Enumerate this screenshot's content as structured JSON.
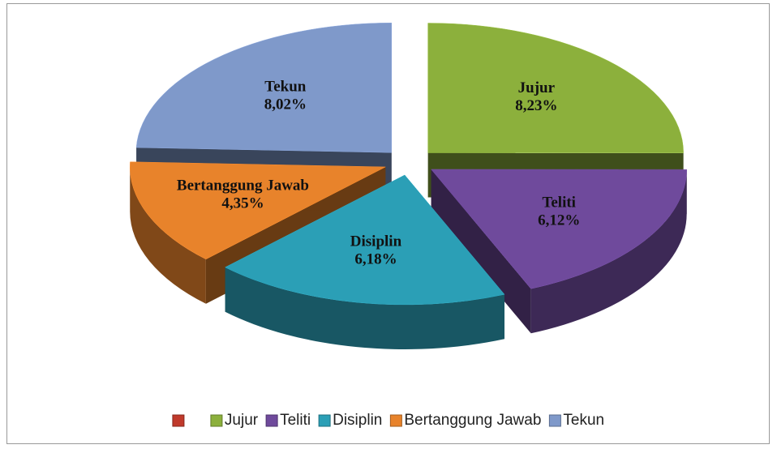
{
  "chart_data": {
    "type": "pie",
    "categories": [
      null,
      "Jujur",
      "Teliti",
      "Disiplin",
      "Bertanggung Jawab",
      "Tekun"
    ],
    "values": [
      null,
      8.23,
      6.12,
      6.18,
      4.35,
      8.02
    ],
    "value_labels": [
      null,
      "8,23%",
      "6,12%",
      "6,18%",
      "4,35%",
      "8,02%"
    ],
    "colors": [
      "#c0392b",
      "#8cb03c",
      "#6f4a9c",
      "#2b9fb6",
      "#e8832b",
      "#7f99ca"
    ],
    "legend": "bottom"
  }
}
